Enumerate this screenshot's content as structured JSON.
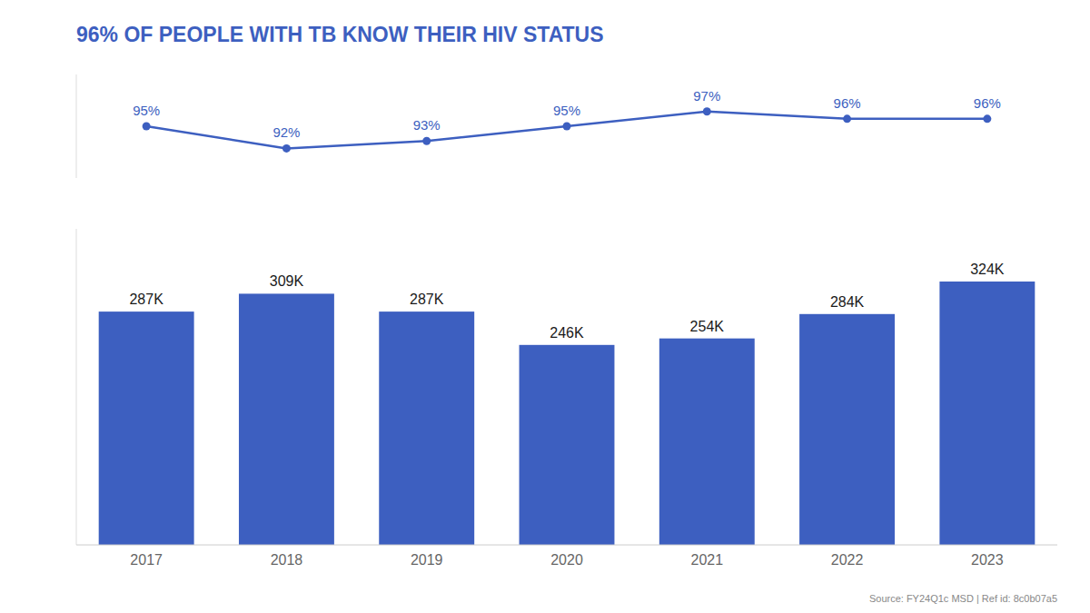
{
  "chart_data": [
    {
      "type": "line",
      "title": "96% OF PEOPLE WITH TB KNOW THEIR HIV STATUS",
      "categories": [
        "2017",
        "2018",
        "2019",
        "2020",
        "2021",
        "2022",
        "2023"
      ],
      "values": [
        95,
        92,
        93,
        95,
        97,
        96,
        96
      ],
      "value_labels": [
        "95%",
        "92%",
        "93%",
        "95%",
        "97%",
        "96%",
        "96%"
      ],
      "color": "#3d5fc0",
      "marker": "circle",
      "ylim": [
        88,
        102
      ],
      "yticks": [],
      "grid": false,
      "data_labels": true,
      "tick_labels": false
    },
    {
      "type": "bar",
      "categories": [
        "2017",
        "2018",
        "2019",
        "2020",
        "2021",
        "2022",
        "2023"
      ],
      "values": [
        287000,
        309000,
        287000,
        246000,
        254000,
        284000,
        324000
      ],
      "value_labels": [
        "287K",
        "309K",
        "287K",
        "246K",
        "254K",
        "284K",
        "324K"
      ],
      "color": "#3d5fc0",
      "ylim": [
        0,
        388800
      ],
      "yticks": [],
      "grid": false,
      "data_labels": true,
      "tick_labels": "x",
      "annotations": [
        "Source: FY24Q1c MSD | Ref id: 8c0b07a5"
      ]
    }
  ]
}
